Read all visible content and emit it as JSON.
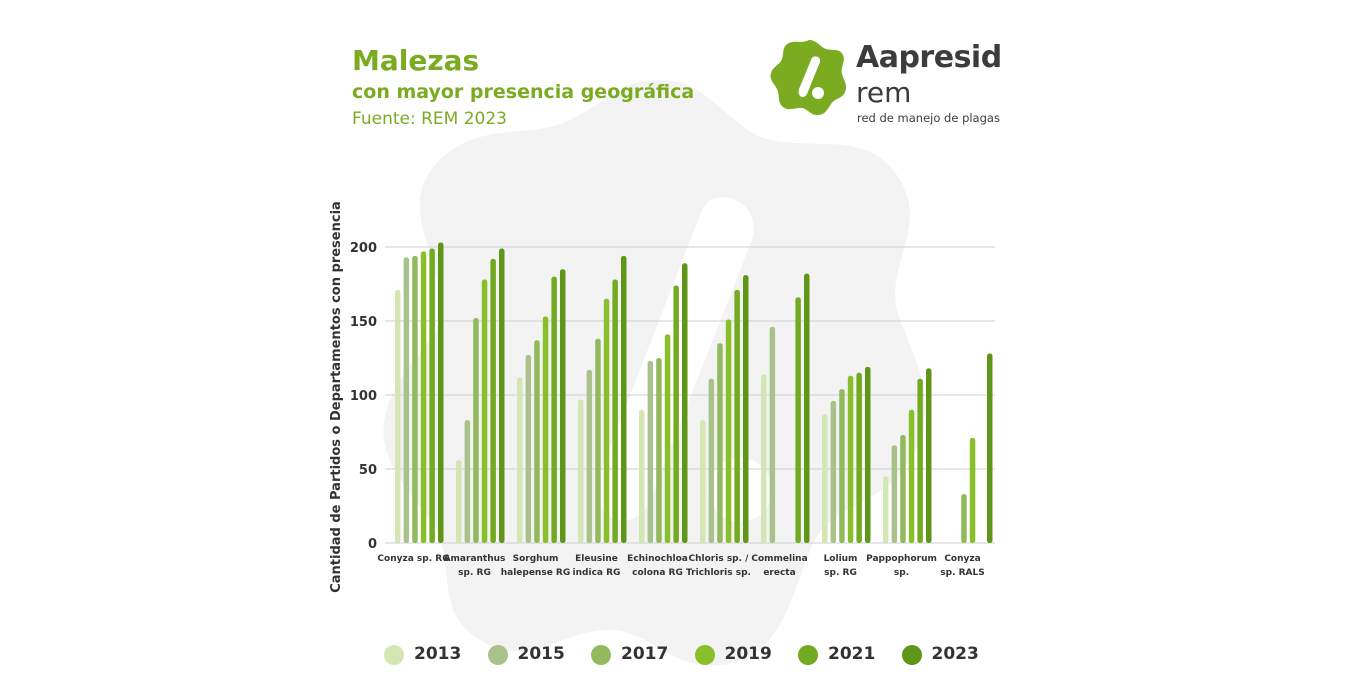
{
  "header": {
    "title": "Malezas",
    "subtitle": "con mayor presencia geográfica",
    "source": "Fuente: REM 2023"
  },
  "brand": {
    "name": "Aapresid",
    "sub": "rem",
    "tagline": "red de manejo de plagas",
    "logo_icon": "aapresid-logo-icon",
    "logo_color": "#7aab21"
  },
  "colors": {
    "2013": "#d3e6b3",
    "2015": "#a9c18a",
    "2017": "#93b95f",
    "2019": "#88bf2a",
    "2021": "#72aa22",
    "2023": "#5f9618",
    "grid": "#cfcfcf",
    "background_blob": "#f3f3f3"
  },
  "chart_data": {
    "type": "bar",
    "ylabel": "Cantidad de Partidos o Departamentos con presencia",
    "ylim": [
      0,
      210
    ],
    "yticks": [
      0,
      50,
      100,
      150,
      200
    ],
    "grid": true,
    "legend_position": "bottom",
    "categories": [
      [
        "Conyza sp. RG"
      ],
      [
        "Amaranthus",
        "sp. RG"
      ],
      [
        "Sorghum",
        "halepense RG"
      ],
      [
        "Eleusine",
        "indica RG"
      ],
      [
        "Echinochloa",
        "colona RG"
      ],
      [
        "Chloris sp. /",
        "Trichloris sp."
      ],
      [
        "Commelina",
        "erecta"
      ],
      [
        "Lolium",
        "sp. RG"
      ],
      [
        "Pappophorum",
        "sp."
      ],
      [
        "Conyza",
        "sp. RALS"
      ]
    ],
    "series": [
      {
        "name": "2013",
        "values": [
          171,
          56,
          112,
          97,
          90,
          83,
          114,
          87,
          45,
          null
        ]
      },
      {
        "name": "2015",
        "values": [
          193,
          83,
          127,
          117,
          123,
          111,
          146,
          96,
          66,
          null
        ]
      },
      {
        "name": "2017",
        "values": [
          194,
          152,
          137,
          138,
          125,
          135,
          null,
          104,
          73,
          33
        ]
      },
      {
        "name": "2019",
        "values": [
          197,
          178,
          153,
          165,
          141,
          151,
          null,
          113,
          90,
          71
        ]
      },
      {
        "name": "2021",
        "values": [
          199,
          192,
          180,
          178,
          174,
          171,
          166,
          115,
          111,
          null
        ]
      },
      {
        "name": "2023",
        "values": [
          203,
          199,
          185,
          194,
          189,
          181,
          182,
          119,
          118,
          128
        ]
      }
    ]
  }
}
